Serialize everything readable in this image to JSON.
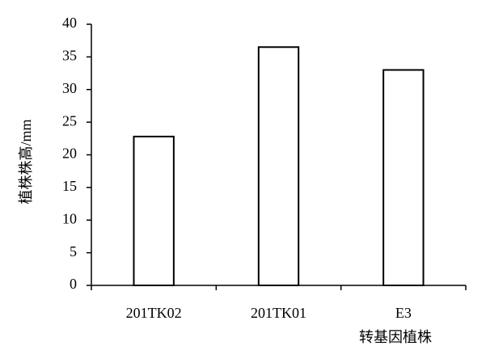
{
  "chart_data": {
    "type": "bar",
    "categories": [
      "201TK02",
      "201TK01",
      "E3"
    ],
    "values": [
      22.8,
      36.5,
      33.0
    ],
    "color": "#ffffff",
    "ylim": [
      0,
      40
    ],
    "yticks": [
      0,
      5,
      10,
      15,
      20,
      25,
      30,
      35,
      40
    ],
    "xlabel": "转基因植株",
    "ylabel": "植株株高/mm",
    "grid": false
  }
}
